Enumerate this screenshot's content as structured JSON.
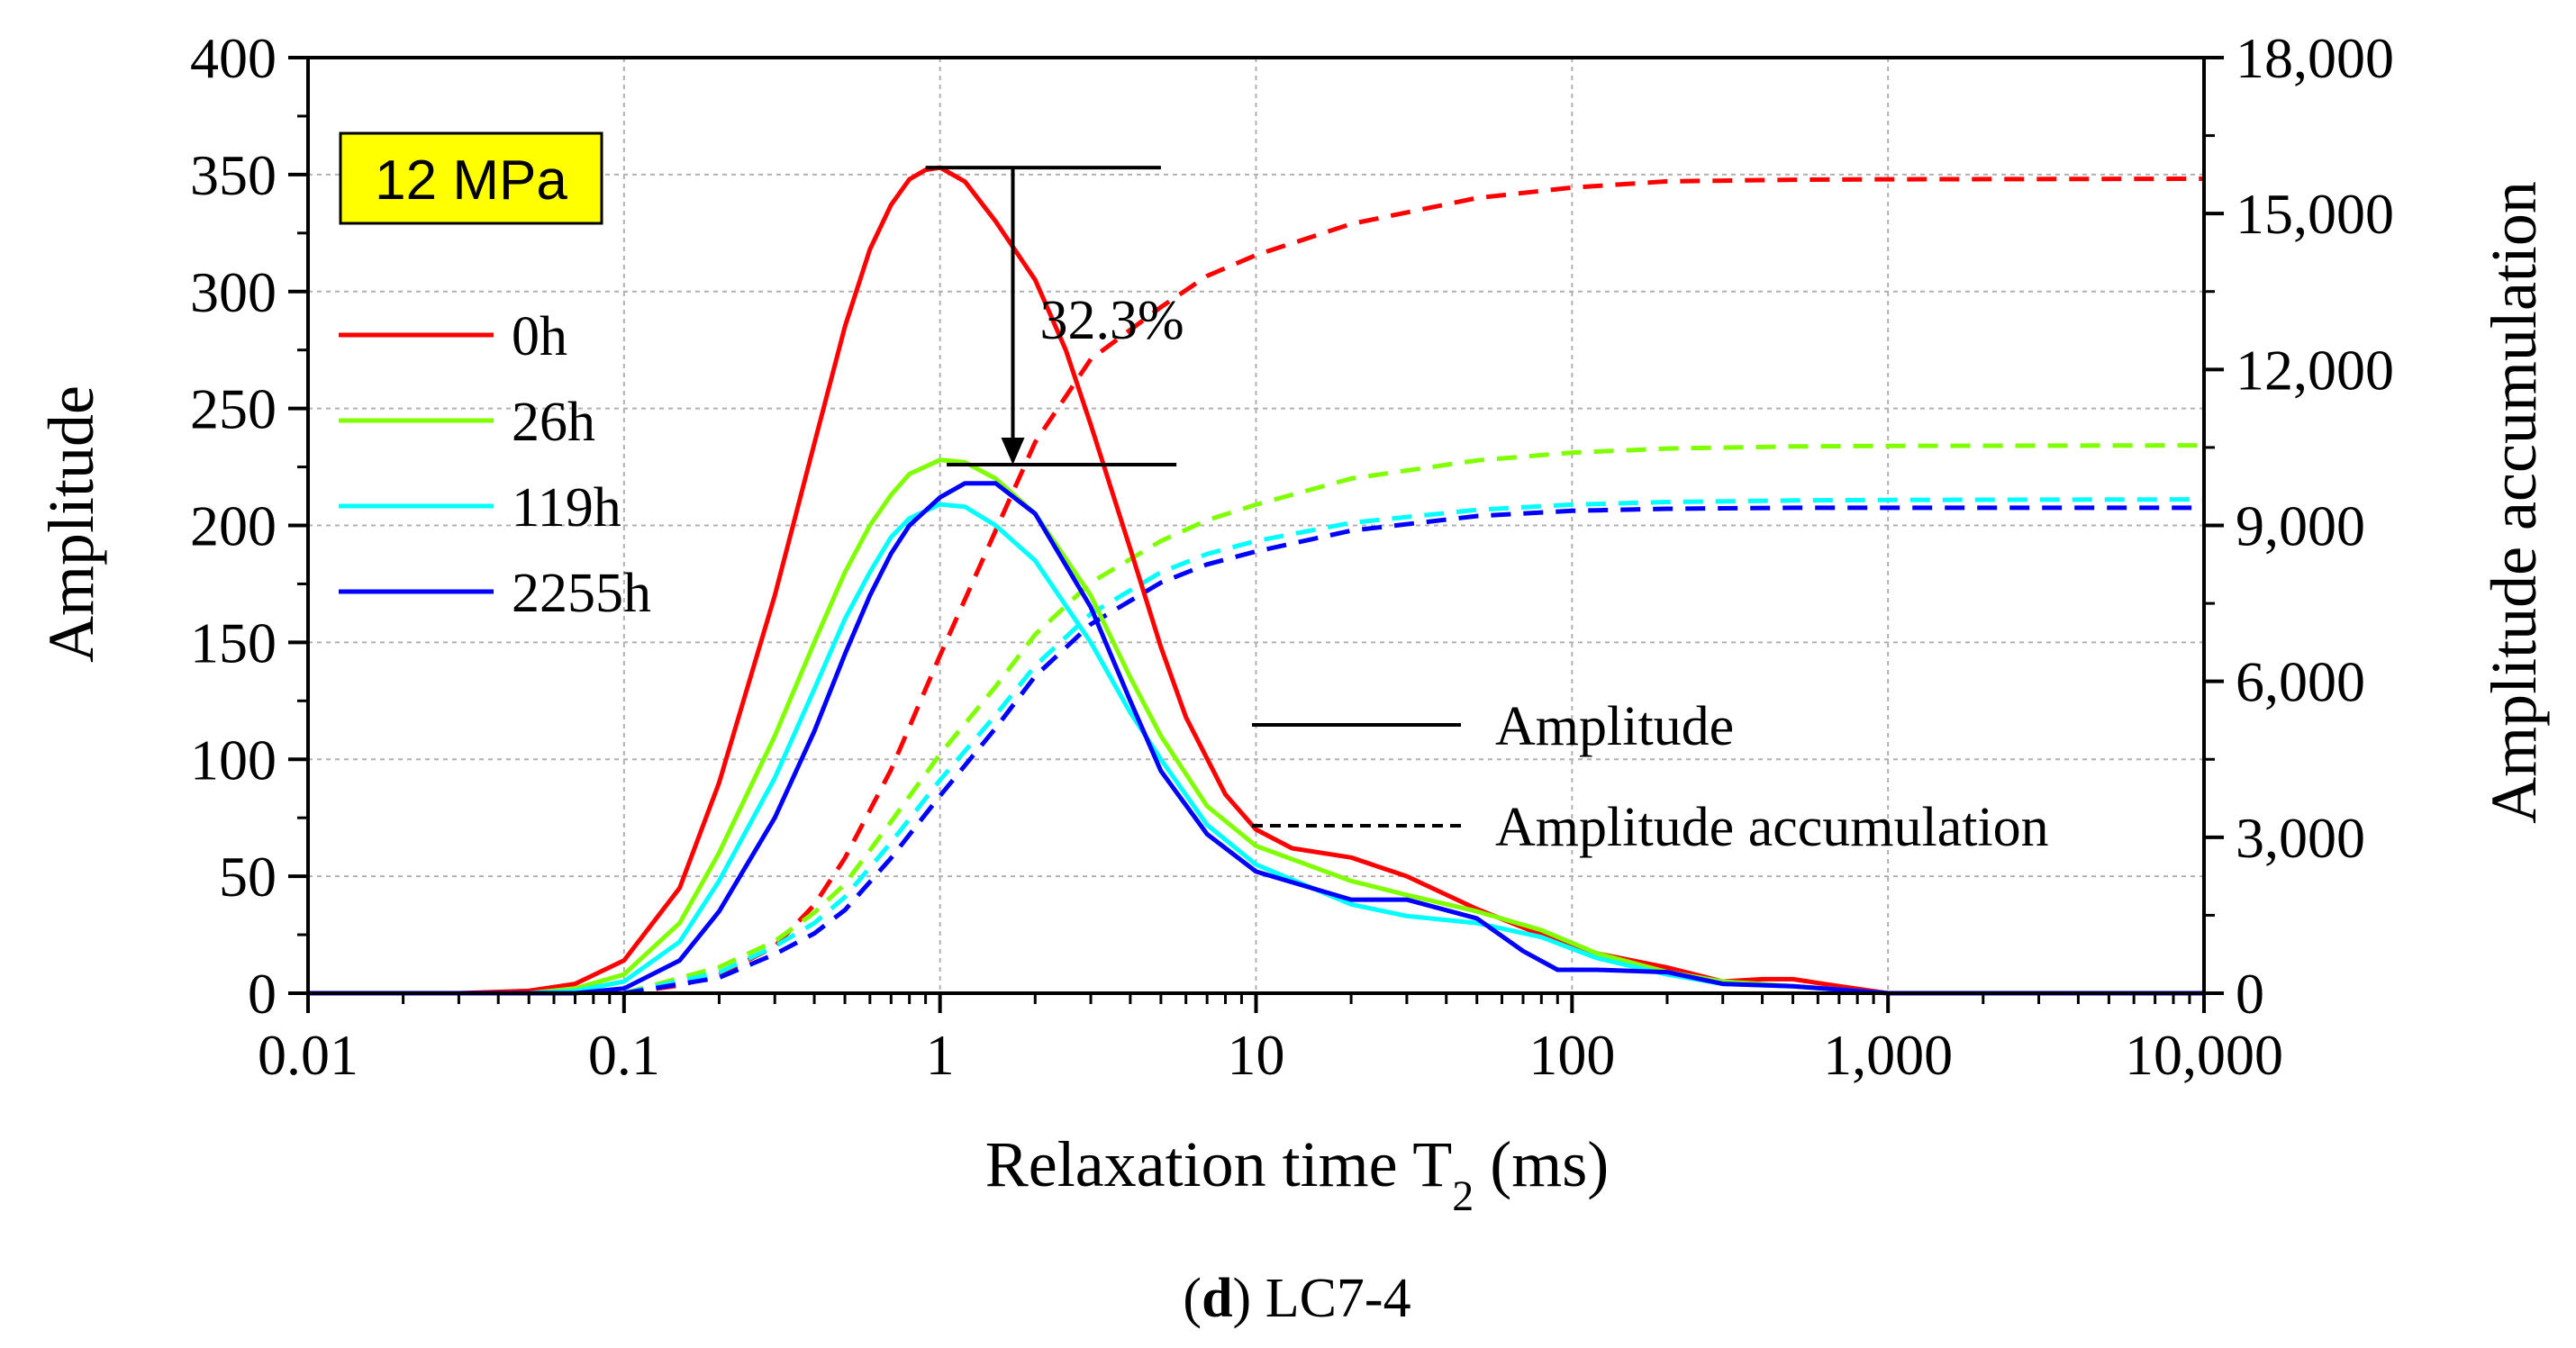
{
  "chart_data": {
    "type": "line",
    "xlabel": "Relaxation time T",
    "xlabel_sub": "2",
    "xlabel_unit": " (ms)",
    "ylabel": "Amplitude",
    "y2label": "Amplitude accumulation",
    "xscale": "log",
    "xlim": [
      0.01,
      10000
    ],
    "ylim": [
      0,
      400
    ],
    "y2lim": [
      0,
      18000
    ],
    "x_ticks": [
      0.01,
      0.1,
      1,
      10,
      100,
      1000,
      10000
    ],
    "x_tick_labels": [
      "0.01",
      "0.1",
      "1",
      "10",
      "100",
      "1,000",
      "10,000"
    ],
    "y_ticks": [
      0,
      50,
      100,
      150,
      200,
      250,
      300,
      350,
      400
    ],
    "y_tick_labels": [
      "0",
      "50",
      "100",
      "150",
      "200",
      "250",
      "300",
      "350",
      "400"
    ],
    "y2_ticks": [
      0,
      3000,
      6000,
      9000,
      12000,
      15000,
      18000
    ],
    "y2_tick_labels": [
      "0",
      "3,000",
      "6,000",
      "9,000",
      "12,000",
      "15,000",
      "18,000"
    ],
    "grid": true,
    "condition_label": "12 MPa",
    "condition_box_color": "#ffff00",
    "legend_position": "top-left",
    "style_legend": [
      {
        "label": "Amplitude",
        "dash": false
      },
      {
        "label": "Amplitude accumulation",
        "dash": true
      }
    ],
    "annotation": {
      "text": "32.3%",
      "x": 1.7,
      "y_from": 353,
      "y_to": 226
    },
    "caption": {
      "letter": "d",
      "text": "LC7-4"
    },
    "series": [
      {
        "name": "0h",
        "color": "#ff0000",
        "amplitude": [
          [
            0.01,
            0
          ],
          [
            0.03,
            0
          ],
          [
            0.05,
            1
          ],
          [
            0.07,
            4
          ],
          [
            0.1,
            14
          ],
          [
            0.15,
            45
          ],
          [
            0.2,
            90
          ],
          [
            0.3,
            170
          ],
          [
            0.4,
            235
          ],
          [
            0.5,
            285
          ],
          [
            0.6,
            318
          ],
          [
            0.7,
            337
          ],
          [
            0.8,
            348
          ],
          [
            0.9,
            352
          ],
          [
            1.0,
            353
          ],
          [
            1.2,
            347
          ],
          [
            1.5,
            330
          ],
          [
            2.0,
            305
          ],
          [
            2.5,
            275
          ],
          [
            3.0,
            243
          ],
          [
            4.0,
            190
          ],
          [
            5.0,
            148
          ],
          [
            6.0,
            118
          ],
          [
            8.0,
            85
          ],
          [
            10.0,
            70
          ],
          [
            13,
            62
          ],
          [
            20,
            58
          ],
          [
            30,
            50
          ],
          [
            50,
            36
          ],
          [
            80,
            25
          ],
          [
            120,
            17
          ],
          [
            200,
            11
          ],
          [
            300,
            5
          ],
          [
            400,
            6
          ],
          [
            500,
            6
          ],
          [
            700,
            3
          ],
          [
            1000,
            0
          ],
          [
            10000,
            0
          ]
        ],
        "accumulation": [
          [
            0.1,
            0
          ],
          [
            0.15,
            150
          ],
          [
            0.2,
            350
          ],
          [
            0.3,
            900
          ],
          [
            0.4,
            1700
          ],
          [
            0.5,
            2600
          ],
          [
            0.7,
            4300
          ],
          [
            1.0,
            6500
          ],
          [
            1.5,
            8900
          ],
          [
            2.0,
            10600
          ],
          [
            3.0,
            12200
          ],
          [
            5.0,
            13200
          ],
          [
            7.0,
            13800
          ],
          [
            10,
            14200
          ],
          [
            20,
            14800
          ],
          [
            50,
            15300
          ],
          [
            100,
            15500
          ],
          [
            200,
            15620
          ],
          [
            500,
            15650
          ],
          [
            1000,
            15660
          ],
          [
            10000,
            15670
          ]
        ]
      },
      {
        "name": "26h",
        "color": "#7fff00",
        "amplitude": [
          [
            0.01,
            0
          ],
          [
            0.05,
            0
          ],
          [
            0.07,
            2
          ],
          [
            0.1,
            8
          ],
          [
            0.15,
            30
          ],
          [
            0.2,
            60
          ],
          [
            0.3,
            110
          ],
          [
            0.4,
            150
          ],
          [
            0.5,
            180
          ],
          [
            0.6,
            200
          ],
          [
            0.7,
            213
          ],
          [
            0.8,
            222
          ],
          [
            1.0,
            228
          ],
          [
            1.2,
            227
          ],
          [
            1.5,
            220
          ],
          [
            2.0,
            205
          ],
          [
            3.0,
            170
          ],
          [
            4.0,
            135
          ],
          [
            5.0,
            110
          ],
          [
            7.0,
            80
          ],
          [
            10,
            63
          ],
          [
            20,
            48
          ],
          [
            30,
            42
          ],
          [
            50,
            35
          ],
          [
            80,
            27
          ],
          [
            120,
            17
          ],
          [
            200,
            9
          ],
          [
            300,
            5
          ],
          [
            500,
            3
          ],
          [
            1000,
            0
          ],
          [
            10000,
            0
          ]
        ],
        "accumulation": [
          [
            0.1,
            0
          ],
          [
            0.2,
            500
          ],
          [
            0.3,
            1000
          ],
          [
            0.4,
            1550
          ],
          [
            0.5,
            2100
          ],
          [
            0.7,
            3300
          ],
          [
            1.0,
            4600
          ],
          [
            1.5,
            5900
          ],
          [
            2.0,
            6900
          ],
          [
            3.0,
            7900
          ],
          [
            5.0,
            8700
          ],
          [
            7.0,
            9100
          ],
          [
            10,
            9400
          ],
          [
            20,
            9900
          ],
          [
            50,
            10250
          ],
          [
            100,
            10400
          ],
          [
            200,
            10480
          ],
          [
            500,
            10520
          ],
          [
            1000,
            10530
          ],
          [
            10000,
            10540
          ]
        ]
      },
      {
        "name": "119h",
        "color": "#00ffff",
        "amplitude": [
          [
            0.01,
            0
          ],
          [
            0.05,
            0
          ],
          [
            0.07,
            1
          ],
          [
            0.1,
            5
          ],
          [
            0.15,
            22
          ],
          [
            0.2,
            48
          ],
          [
            0.3,
            92
          ],
          [
            0.4,
            130
          ],
          [
            0.5,
            160
          ],
          [
            0.6,
            180
          ],
          [
            0.7,
            195
          ],
          [
            0.8,
            203
          ],
          [
            1.0,
            209
          ],
          [
            1.2,
            208
          ],
          [
            1.5,
            200
          ],
          [
            2.0,
            185
          ],
          [
            3.0,
            150
          ],
          [
            4.0,
            120
          ],
          [
            5.0,
            100
          ],
          [
            7.0,
            72
          ],
          [
            10,
            55
          ],
          [
            20,
            38
          ],
          [
            30,
            33
          ],
          [
            50,
            30
          ],
          [
            80,
            24
          ],
          [
            120,
            15
          ],
          [
            200,
            8
          ],
          [
            300,
            4
          ],
          [
            500,
            3
          ],
          [
            1000,
            0
          ],
          [
            10000,
            0
          ]
        ],
        "accumulation": [
          [
            0.1,
            0
          ],
          [
            0.2,
            400
          ],
          [
            0.3,
            900
          ],
          [
            0.4,
            1350
          ],
          [
            0.5,
            1850
          ],
          [
            0.7,
            2900
          ],
          [
            1.0,
            4100
          ],
          [
            1.5,
            5350
          ],
          [
            2.0,
            6300
          ],
          [
            3.0,
            7300
          ],
          [
            5.0,
            8100
          ],
          [
            7.0,
            8450
          ],
          [
            10,
            8700
          ],
          [
            20,
            9050
          ],
          [
            50,
            9300
          ],
          [
            100,
            9400
          ],
          [
            200,
            9450
          ],
          [
            500,
            9480
          ],
          [
            1000,
            9490
          ],
          [
            10000,
            9500
          ]
        ]
      },
      {
        "name": "2255h",
        "color": "#0000ff",
        "amplitude": [
          [
            0.01,
            0
          ],
          [
            0.07,
            0
          ],
          [
            0.1,
            2
          ],
          [
            0.15,
            14
          ],
          [
            0.2,
            35
          ],
          [
            0.3,
            75
          ],
          [
            0.4,
            112
          ],
          [
            0.5,
            145
          ],
          [
            0.6,
            170
          ],
          [
            0.7,
            188
          ],
          [
            0.8,
            200
          ],
          [
            1.0,
            212
          ],
          [
            1.2,
            218
          ],
          [
            1.5,
            218
          ],
          [
            2.0,
            205
          ],
          [
            3.0,
            165
          ],
          [
            4.0,
            125
          ],
          [
            5.0,
            95
          ],
          [
            7.0,
            68
          ],
          [
            10,
            52
          ],
          [
            20,
            40
          ],
          [
            30,
            40
          ],
          [
            50,
            32
          ],
          [
            70,
            18
          ],
          [
            90,
            10
          ],
          [
            120,
            10
          ],
          [
            200,
            9
          ],
          [
            300,
            4
          ],
          [
            500,
            3
          ],
          [
            1000,
            0
          ],
          [
            10000,
            0
          ]
        ],
        "accumulation": [
          [
            0.1,
            0
          ],
          [
            0.2,
            300
          ],
          [
            0.3,
            750
          ],
          [
            0.4,
            1150
          ],
          [
            0.5,
            1600
          ],
          [
            0.7,
            2600
          ],
          [
            1.0,
            3800
          ],
          [
            1.5,
            5100
          ],
          [
            2.0,
            6100
          ],
          [
            3.0,
            7100
          ],
          [
            5.0,
            7900
          ],
          [
            7.0,
            8250
          ],
          [
            10,
            8500
          ],
          [
            20,
            8900
          ],
          [
            50,
            9180
          ],
          [
            100,
            9280
          ],
          [
            200,
            9320
          ],
          [
            500,
            9340
          ],
          [
            1000,
            9340
          ],
          [
            10000,
            9340
          ]
        ]
      }
    ]
  }
}
